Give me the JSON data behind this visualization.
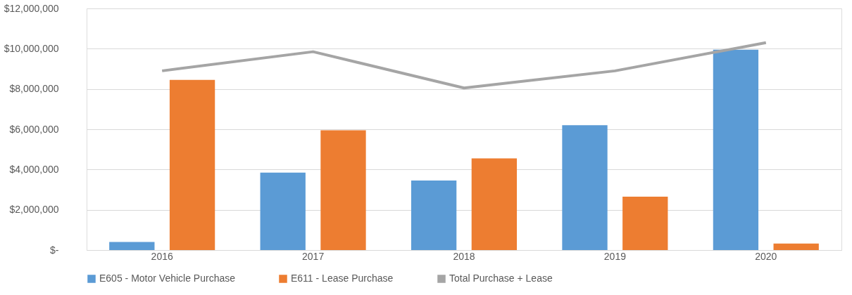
{
  "chart_data": {
    "type": "bar",
    "categories": [
      "2016",
      "2017",
      "2018",
      "2019",
      "2020"
    ],
    "series": [
      {
        "name": "E605 - Motor Vehicle Purchase",
        "color": "#5b9bd5",
        "values": [
          400000,
          3850000,
          3450000,
          6200000,
          9950000
        ]
      },
      {
        "name": "E611 - Lease Purchase",
        "color": "#ed7d31",
        "values": [
          8450000,
          5950000,
          4550000,
          2650000,
          320000
        ]
      },
      {
        "name": "Total Purchase + Lease",
        "color": "#a5a5a5",
        "type": "line",
        "marker": "none",
        "values": [
          8900000,
          9850000,
          8050000,
          8900000,
          10300000
        ]
      }
    ],
    "ylim": [
      0,
      12000000
    ],
    "yticks": [
      {
        "value": 0,
        "label": "$-"
      },
      {
        "value": 2000000,
        "label": "$2,000,000"
      },
      {
        "value": 4000000,
        "label": "$4,000,000"
      },
      {
        "value": 6000000,
        "label": "$6,000,000"
      },
      {
        "value": 8000000,
        "label": "$8,000,000"
      },
      {
        "value": 10000000,
        "label": "$10,000,000"
      },
      {
        "value": 12000000,
        "label": "$12,000,000"
      }
    ],
    "grid": "y",
    "legend": "bottom"
  }
}
